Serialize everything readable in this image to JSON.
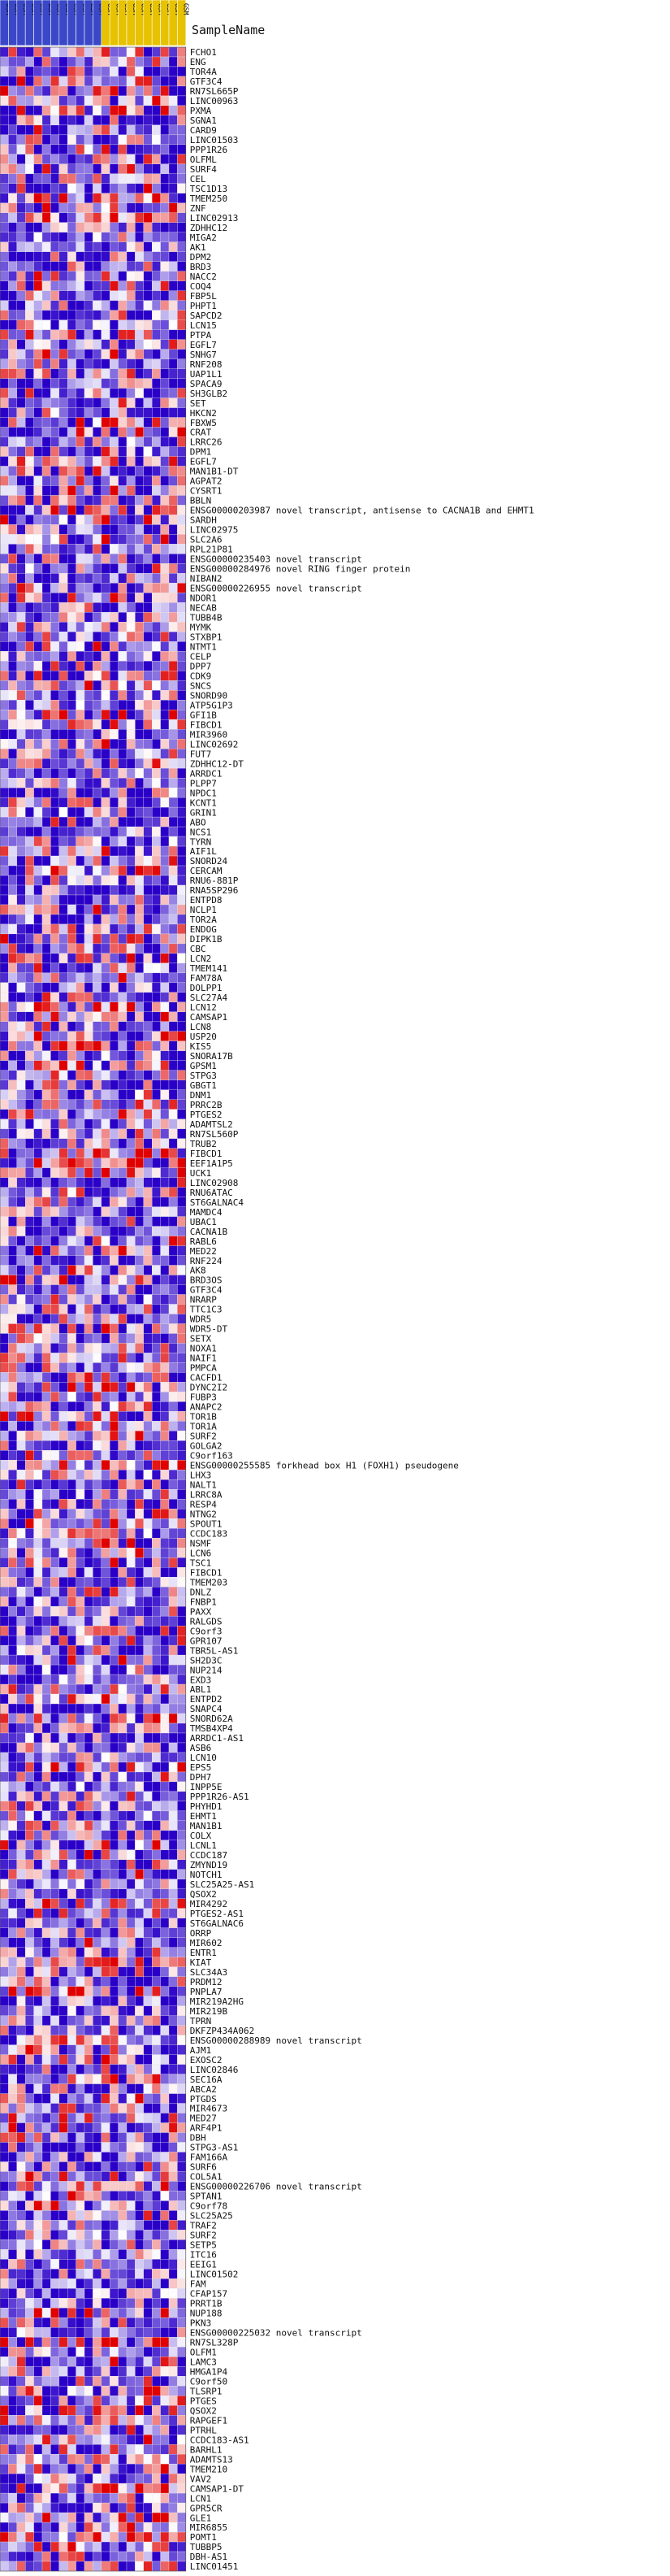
{
  "chart_data": {
    "type": "heatmap",
    "header_label": "SampleName",
    "columns": [
      {
        "name": "GSM",
        "group": "blue"
      },
      {
        "name": "GSM",
        "group": "blue"
      },
      {
        "name": "GSM",
        "group": "blue"
      },
      {
        "name": "GSM",
        "group": "blue"
      },
      {
        "name": "GSM",
        "group": "blue"
      },
      {
        "name": "GSM",
        "group": "blue"
      },
      {
        "name": "GSM",
        "group": "blue"
      },
      {
        "name": "GSM",
        "group": "blue"
      },
      {
        "name": "GSM",
        "group": "blue"
      },
      {
        "name": "GSM",
        "group": "blue"
      },
      {
        "name": "GSM",
        "group": "blue"
      },
      {
        "name": "GSM",
        "group": "blue"
      },
      {
        "name": "GSM",
        "group": "gold"
      },
      {
        "name": "GSM",
        "group": "gold"
      },
      {
        "name": "GSM",
        "group": "gold"
      },
      {
        "name": "GSM",
        "group": "gold"
      },
      {
        "name": "GSM",
        "group": "gold"
      },
      {
        "name": "GSM",
        "group": "gold"
      },
      {
        "name": "GSM",
        "group": "gold"
      },
      {
        "name": "GSM",
        "group": "gold"
      },
      {
        "name": "GSM",
        "group": "gold"
      },
      {
        "name": "GSM",
        "group": "gold"
      }
    ],
    "group_colors": {
      "blue": "#3a48c8",
      "gold": "#e6c200"
    },
    "color_scale": {
      "low": "#2a00c8",
      "mid": "#ffffff",
      "high": "#e00000"
    },
    "rows": [
      "FCHO1",
      "ENG",
      "TOR4A",
      "GTF3C4",
      "RN7SL665P",
      "LINC00963",
      "PXMA",
      "SGNA1",
      "CARD9",
      "LINC01503",
      "PPP1R26",
      "OLFML",
      "SURF4",
      "CEL",
      "TSC1D13",
      "TMEM250",
      "ZNF",
      "LINC02913",
      "ZDHHC12",
      "MIGA2",
      "AK1",
      "DPM2",
      "BRD3",
      "NACC2",
      "COQ4",
      "FBP5L",
      "PHPT1",
      "SAPCD2",
      "LCN15",
      "PTPA",
      "EGFL7",
      "SNHG7",
      "RNF208",
      "UAP1L1",
      "SPACA9",
      "SH3GLB2",
      "SET",
      "HKCN2",
      "FBXW5",
      "CRAT",
      "LRRC26",
      "DPM1",
      "EGFL7",
      "MAN1B1-DT",
      "AGPAT2",
      "CYSRT1",
      "BBLN",
      "ENSG00000203987",
      "SARDH",
      "LINC02975",
      "SLC2A6",
      "RPL21P81",
      "ENSG00000235403",
      "ENSG00000284976",
      "NIBAN2",
      "ENSG00000226955",
      "NDOR1",
      "NECAB",
      "TUBB4B",
      "MYMK",
      "STXBP1",
      "NTMT1",
      "CELP",
      "DPP7",
      "CDK9",
      "SNCS",
      "SNORD90",
      "ATP5G1P3",
      "GFI1B",
      "FIBCD1",
      "MIR3960",
      "LINC02692",
      "FUT7",
      "ZDHHC12-DT",
      "ARRDC1",
      "PLPP7",
      "NPDC1",
      "KCNT1",
      "GRIN1",
      "ABO",
      "NCS1",
      "TYRN",
      "AIF1L",
      "SNORD24",
      "CERCAM",
      "RNU6-881P",
      "RNA5SP296",
      "ENTPD8",
      "NCLP1",
      "TOR2A",
      "ENDOG",
      "DIPK1B",
      "CBC",
      "LCN2",
      "TMEM141",
      "FAM78A",
      "DOLPP1",
      "SLC27A4",
      "LCN12",
      "CAMSAP1",
      "LCN8",
      "USP20",
      "KIS5",
      "SNORA17B",
      "GPSM1",
      "STPG3",
      "GBGT1",
      "DNM1",
      "PRRC2B",
      "PTGES2",
      "ADAMTSL2",
      "RN7SL560P",
      "TRUB2",
      "FIBCD1",
      "EEF1A1P5",
      "UCK1",
      "LINC02908",
      "RNU6ATAC",
      "ST6GALNAC4",
      "MAMDC4",
      "UBAC1",
      "CACNA1B",
      "RABL6",
      "MED22",
      "RNF224",
      "AK8",
      "BRD3OS",
      "GTF3C4",
      "NRARP",
      "TTC1C3",
      "WDR5",
      "WDR5-DT",
      "SETX",
      "NOXA1",
      "NAIF1",
      "PMPCA",
      "CACFD1",
      "DYNC2I2",
      "FUBP3",
      "ANAPC2",
      "TOR1B",
      "TOR1A",
      "SURF2",
      "GOLGA2",
      "C9orf163",
      "ENSG00000255585",
      "LHX3",
      "NALT1",
      "LRRC8A",
      "RESP4",
      "NTNG2",
      "SPOUT1",
      "CCDC183",
      "NSMF",
      "LCN6",
      "TSC1",
      "FIBCD1",
      "TMEM203",
      "DNLZ",
      "FNBP1",
      "PAXX",
      "RALGDS",
      "C9orf3",
      "GPR107",
      "TBR5L-AS1",
      "SH2D3C",
      "NUP214",
      "EXD3",
      "ABL1",
      "ENTPD2",
      "SNAPC4",
      "SNORD62A",
      "TMSB4XP4",
      "ARRDC1-AS1",
      "ASB6",
      "LCN10",
      "EPS5",
      "DPH7",
      "INPP5E",
      "PPP1R26-AS1",
      "PHYHD1",
      "EHMT1",
      "MAN1B1",
      "COLX",
      "LCNL1",
      "CCDC187",
      "ZMYND19",
      "NOTCH1",
      "SLC25A25-AS1",
      "QSOX2",
      "MIR4292",
      "PTGES2-AS1",
      "ST6GALNAC6",
      "ORRP",
      "MIR602",
      "ENTR1",
      "KIAT",
      "SLC34A3",
      "PRDM12",
      "PNPLA7",
      "MIR219A2HG",
      "MIR219B",
      "TPRN",
      "DKFZP434A062",
      "ENSG00000288989",
      "AJM1",
      "EXOSC2",
      "LINC02846",
      "SEC16A",
      "ABCA2",
      "PTGDS",
      "MIR4673",
      "MED27",
      "ARF4P1",
      "DBH",
      "STPG3-AS1",
      "FAM166A",
      "SURF6",
      "COL5A1",
      "ENSG00000226706",
      "SPTAN1",
      "C9orf78",
      "SLC25A25",
      "TRAF2",
      "SURF2",
      "SETP5",
      "ITC16",
      "EEIG1",
      "LINC01502",
      "FAM",
      "CFAP157",
      "PRRT1B",
      "NUP188",
      "PKN3",
      "ENSG00000225032",
      "RN7SL328P",
      "OLFM1",
      "LAMC3",
      "HMGA1P4",
      "C9orf50",
      "TLSRP1",
      "PTGES",
      "QSOX2",
      "RAPGEF1",
      "PTRHL",
      "CCDC183-AS1",
      "BARHL1",
      "ADAMTS13",
      "TMEM210",
      "VAV2",
      "CAMSAP1-DT",
      "LCN1",
      "GPR5CR",
      "GLE1",
      "MIR6855",
      "POMT1",
      "TUBBP5",
      "DBH-AS1",
      "LINC01451"
    ],
    "row_annotations": {
      "ENSG00000203987": "ENSG00000203987  novel transcript, antisense to CACNA1B and EHMT1",
      "ENSG00000235403": "ENSG00000235403  novel transcript",
      "ENSG00000284976": "ENSG00000284976  novel RING finger protein",
      "ENSG00000226955": "ENSG00000226955  novel transcript",
      "ENSG00000255585": "ENSG00000255585  forkhead box H1 (FOXH1) pseudogene",
      "ENSG00000288989": "ENSG00000288989  novel transcript",
      "ENSG00000226706": "ENSG00000226706  novel transcript",
      "ENSG00000225032": "ENSG00000225032  novel transcript"
    },
    "value_range": [
      -1,
      1
    ],
    "seed": 20240917
  }
}
